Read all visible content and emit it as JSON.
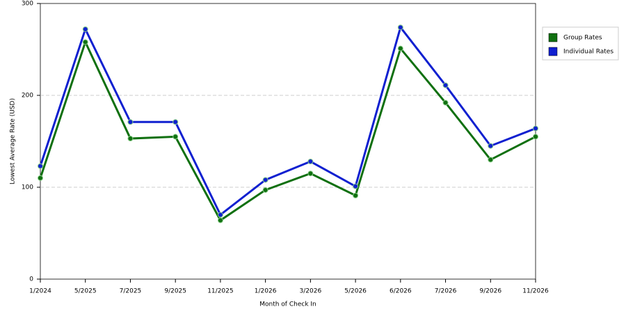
{
  "chart_data": {
    "type": "line",
    "x_label": "Month of Check In",
    "y_label": "Lowest Average Rate (USD)",
    "categories": [
      "1/2024",
      "5/2025",
      "7/2025",
      "9/2025",
      "11/2025",
      "1/2026",
      "3/2026",
      "5/2026",
      "6/2026",
      "7/2026",
      "9/2026",
      "11/2026"
    ],
    "series": [
      {
        "name": "Group Rates",
        "color": "#107010",
        "values": [
          110,
          258,
          153,
          155,
          64,
          97,
          115,
          91,
          251,
          192,
          130,
          155
        ]
      },
      {
        "name": "Individual Rates",
        "color": "#1020d0",
        "values": [
          123,
          272,
          171,
          171,
          70,
          108,
          128,
          101,
          274,
          211,
          145,
          164
        ]
      }
    ],
    "ylim": [
      0,
      300
    ],
    "yticks": [
      0,
      100,
      200,
      300
    ],
    "grid": true,
    "legend": "top-right"
  }
}
